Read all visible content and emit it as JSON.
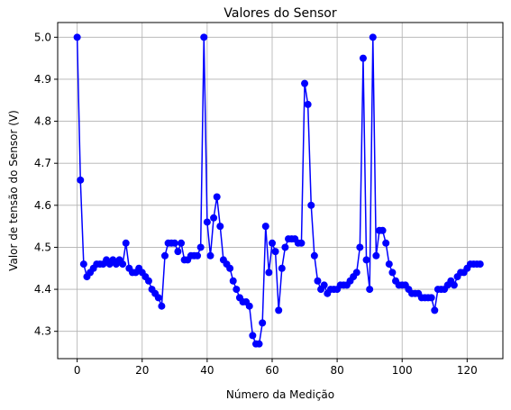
{
  "chart_data": {
    "type": "line",
    "title": "Valores do Sensor",
    "xlabel": "Número da Medição",
    "ylabel": "Valor de tensão do Sensor (V)",
    "xlim": [
      -6,
      131
    ],
    "ylim": [
      4.235,
      5.035
    ],
    "xticks": [
      0,
      20,
      40,
      60,
      80,
      100,
      120
    ],
    "yticks": [
      4.3,
      4.4,
      4.5,
      4.6,
      4.7,
      4.8,
      4.9,
      5.0
    ],
    "ytick_labels": [
      "4.3",
      "4.4",
      "4.5",
      "4.6",
      "4.7",
      "4.8",
      "4.9",
      "5.0"
    ],
    "grid": true,
    "line_color": "#0000ff",
    "marker": "circle",
    "series": [
      {
        "x": [
          0,
          1,
          2,
          3,
          4,
          5,
          6,
          7,
          8,
          9,
          10,
          11,
          12,
          13,
          14,
          15,
          16,
          17,
          18,
          19,
          20,
          21,
          22,
          23,
          24,
          25,
          26,
          27,
          28,
          29,
          30,
          31,
          32,
          33,
          34,
          35,
          36,
          37,
          38,
          39,
          40,
          41,
          42,
          43,
          44,
          45,
          46,
          47,
          48,
          49,
          50,
          51,
          52,
          53,
          54,
          55,
          56,
          57,
          58,
          59,
          60,
          61,
          62,
          63,
          64,
          65,
          66,
          67,
          68,
          69,
          70,
          71,
          72,
          73,
          74,
          75,
          76,
          77,
          78,
          79,
          80,
          81,
          82,
          83,
          84,
          85,
          86,
          87,
          88,
          89,
          90,
          91,
          92,
          93,
          94,
          95,
          96,
          97,
          98,
          99,
          100,
          101,
          102,
          103,
          104,
          105,
          106,
          107,
          108,
          109,
          110,
          111,
          112,
          113,
          114,
          115,
          116,
          117,
          118,
          119,
          120,
          121,
          122,
          123,
          124
        ],
        "y": [
          5.0,
          4.66,
          4.46,
          4.43,
          4.44,
          4.45,
          4.46,
          4.46,
          4.46,
          4.47,
          4.46,
          4.47,
          4.46,
          4.47,
          4.46,
          4.51,
          4.45,
          4.44,
          4.44,
          4.45,
          4.44,
          4.43,
          4.42,
          4.4,
          4.39,
          4.38,
          4.36,
          4.48,
          4.51,
          4.51,
          4.51,
          4.49,
          4.51,
          4.47,
          4.47,
          4.48,
          4.48,
          4.48,
          4.5,
          5.0,
          4.56,
          4.48,
          4.57,
          4.62,
          4.55,
          4.47,
          4.46,
          4.45,
          4.42,
          4.4,
          4.38,
          4.37,
          4.37,
          4.36,
          4.29,
          4.27,
          4.27,
          4.32,
          4.55,
          4.44,
          4.51,
          4.49,
          4.35,
          4.45,
          4.5,
          4.52,
          4.52,
          4.52,
          4.51,
          4.51,
          4.89,
          4.84,
          4.6,
          4.48,
          4.42,
          4.4,
          4.41,
          4.39,
          4.4,
          4.4,
          4.4,
          4.41,
          4.41,
          4.41,
          4.42,
          4.43,
          4.44,
          4.5,
          4.95,
          4.47,
          4.4,
          5.0,
          4.48,
          4.54,
          4.54,
          4.51,
          4.46,
          4.44,
          4.42,
          4.41,
          4.41,
          4.41,
          4.4,
          4.39,
          4.39,
          4.39,
          4.38,
          4.38,
          4.38,
          4.38,
          4.35,
          4.4,
          4.4,
          4.4,
          4.41,
          4.42,
          4.41,
          4.43,
          4.44,
          4.44,
          4.45,
          4.46,
          4.46,
          4.46,
          4.46
        ]
      }
    ]
  }
}
